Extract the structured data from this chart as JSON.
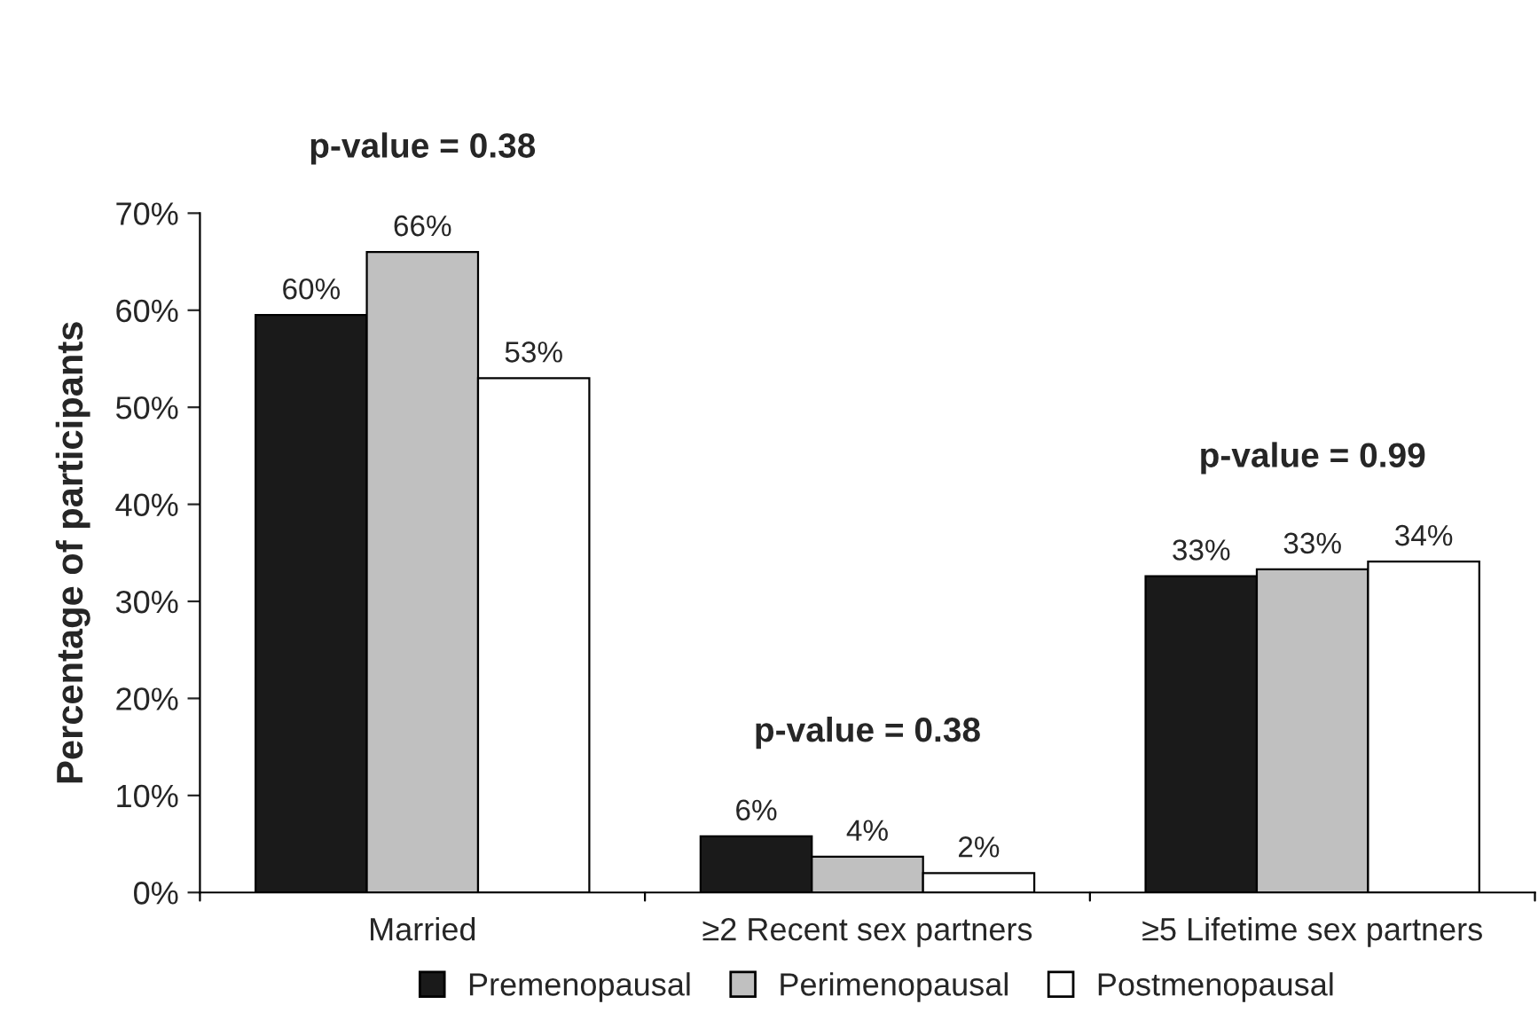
{
  "chart_data": {
    "type": "bar",
    "ylabel": "Percentage of participants",
    "categories": [
      "Married",
      "≥2 Recent sex partners",
      "≥5 Lifetime sex partners"
    ],
    "series": [
      {
        "name": "Premenopausal",
        "color": "#1a1a1a",
        "values": [
          59.5,
          5.8,
          32.6
        ],
        "value_labels": [
          "60%",
          "6%",
          "33%"
        ]
      },
      {
        "name": "Perimenopausal",
        "color": "#c0c0c0",
        "values": [
          66,
          3.7,
          33.3
        ],
        "value_labels": [
          "66%",
          "4%",
          "33%"
        ]
      },
      {
        "name": "Postmenopausal",
        "color": "#ffffff",
        "values": [
          53,
          2,
          34.1
        ],
        "value_labels": [
          "53%",
          "2%",
          "34%"
        ]
      }
    ],
    "ylim": [
      0,
      70
    ],
    "yticks": [
      {
        "value": 0,
        "label": "0%"
      },
      {
        "value": 10,
        "label": "10%"
      },
      {
        "value": 20,
        "label": "20%"
      },
      {
        "value": 30,
        "label": "30%"
      },
      {
        "value": 40,
        "label": "40%"
      },
      {
        "value": 50,
        "label": "50%"
      },
      {
        "value": 60,
        "label": "60%"
      },
      {
        "value": 70,
        "label": "70%"
      }
    ],
    "annotations": [
      "p-value = 0.38",
      "p-value = 0.38",
      "p-value = 0.99"
    ],
    "grid": false,
    "legend": "bottom"
  }
}
